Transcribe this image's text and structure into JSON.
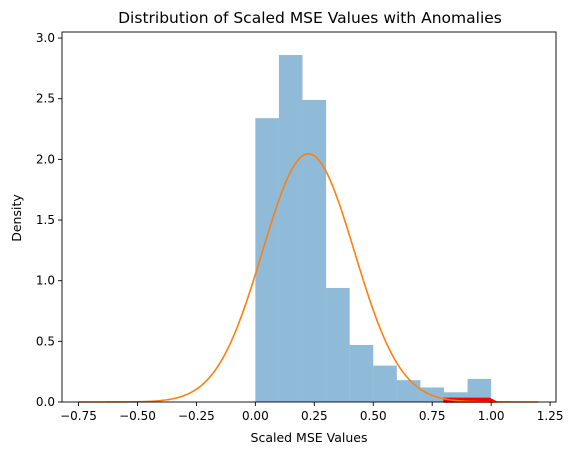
{
  "chart_data": {
    "type": "histogram",
    "title": "Distribution of Scaled MSE Values with Anomalies",
    "xlabel": "Scaled MSE Values",
    "ylabel": "Density",
    "xlim": [
      -0.82,
      1.275
    ],
    "ylim": [
      0,
      3.05
    ],
    "x_ticks": [
      "−0.75",
      "−0.50",
      "−0.25",
      "0.00",
      "0.25",
      "0.50",
      "0.75",
      "1.00",
      "1.25"
    ],
    "x_tick_values": [
      -0.75,
      -0.5,
      -0.25,
      0.0,
      0.25,
      0.5,
      0.75,
      1.0,
      1.25
    ],
    "y_ticks": [
      "0.0",
      "0.5",
      "1.0",
      "1.5",
      "2.0",
      "2.5",
      "3.0"
    ],
    "y_tick_values": [
      0.0,
      0.5,
      1.0,
      1.5,
      2.0,
      2.5,
      3.0
    ],
    "grid": false,
    "histogram": {
      "bin_edges": [
        0.0,
        0.1,
        0.2,
        0.3,
        0.4,
        0.5,
        0.6,
        0.7,
        0.8,
        0.9,
        1.0
      ],
      "density": [
        2.34,
        2.86,
        2.49,
        0.94,
        0.47,
        0.3,
        0.18,
        0.12,
        0.08,
        0.19
      ],
      "color": "#1f77b4",
      "alpha": 0.5
    },
    "density_curve": {
      "kind": "normal",
      "mean": 0.225,
      "std": 0.195,
      "x_range": [
        -0.75,
        1.2
      ],
      "color": "#ff7f0e"
    },
    "anomalies": {
      "color": "#ff0000",
      "x_range": [
        0.8,
        1.01
      ],
      "height": 0.03
    }
  }
}
